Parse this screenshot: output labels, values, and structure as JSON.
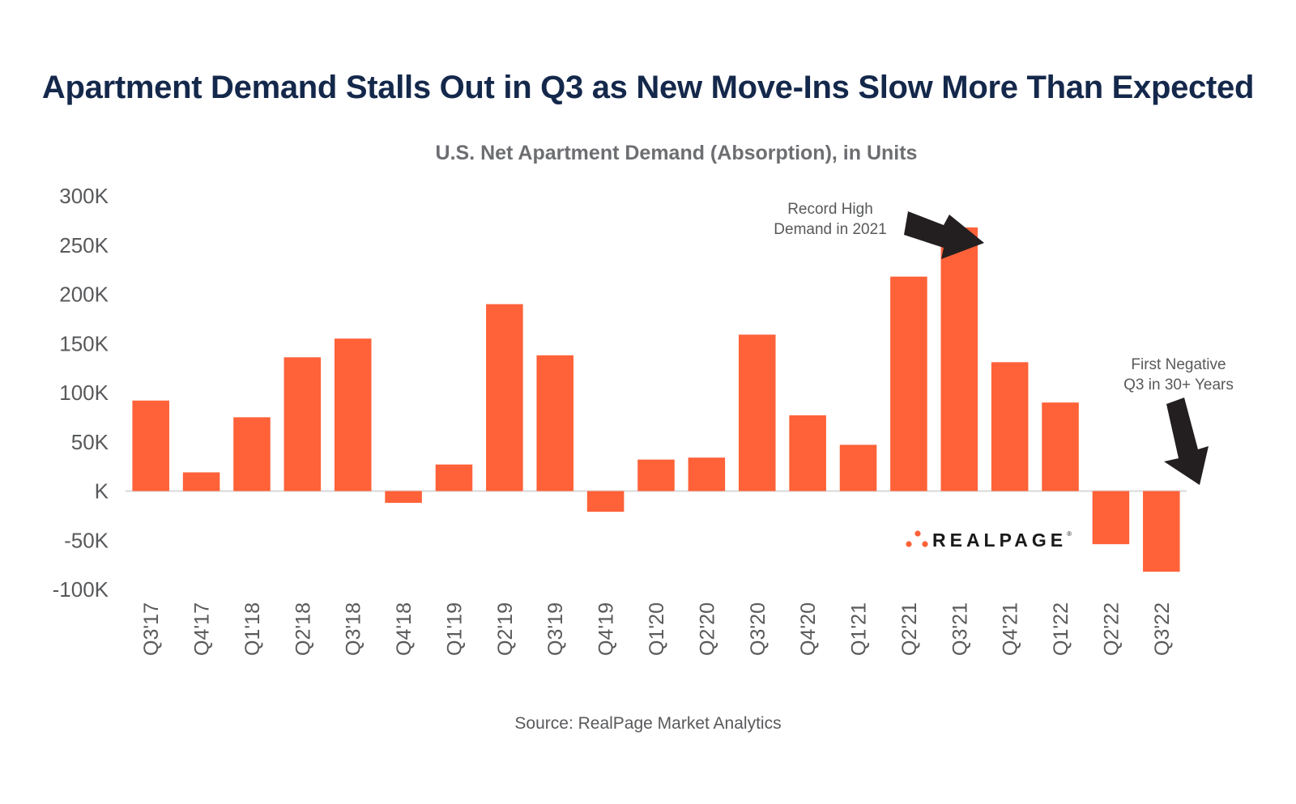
{
  "title": "Apartment Demand Stalls Out in Q3 as New Move-Ins Slow More Than Expected",
  "source": "Source: RealPage Market Analytics",
  "colors": {
    "bar": "#ff6138",
    "title": "#14284b",
    "text": "#58595b",
    "arrow": "#231f20"
  },
  "annotations": {
    "record_line1": "Record High",
    "record_line2": "Demand in 2021",
    "negative_line1": "First Negative",
    "negative_line2": "Q3 in 30+ Years"
  },
  "logo": {
    "text": "REALPAGE",
    "mark": "®"
  },
  "chart_data": {
    "type": "bar",
    "title": "U.S. Net Apartment Demand (Absorption), in Units",
    "xlabel": "",
    "ylabel": "",
    "ylim": [
      -100000,
      300000
    ],
    "yticks": [
      300000,
      250000,
      200000,
      150000,
      100000,
      50000,
      0,
      -50000,
      -100000
    ],
    "ytick_labels": [
      "300K",
      "250K",
      "200K",
      "150K",
      "100K",
      "50K",
      "K",
      "-50K",
      "-100K"
    ],
    "grid": false,
    "legend": "none",
    "categories": [
      "Q3'17",
      "Q4'17",
      "Q1'18",
      "Q2'18",
      "Q3'18",
      "Q4'18",
      "Q1'19",
      "Q2'19",
      "Q3'19",
      "Q4'19",
      "Q1'20",
      "Q2'20",
      "Q3'20",
      "Q4'20",
      "Q1'21",
      "Q2'21",
      "Q3'21",
      "Q4'21",
      "Q1'22",
      "Q2'22",
      "Q3'22"
    ],
    "values": [
      92000,
      19000,
      75000,
      136000,
      155000,
      -12000,
      27000,
      190000,
      138000,
      -21000,
      32000,
      34000,
      159000,
      77000,
      47000,
      218000,
      268000,
      131000,
      90000,
      -54000,
      -82000
    ]
  }
}
